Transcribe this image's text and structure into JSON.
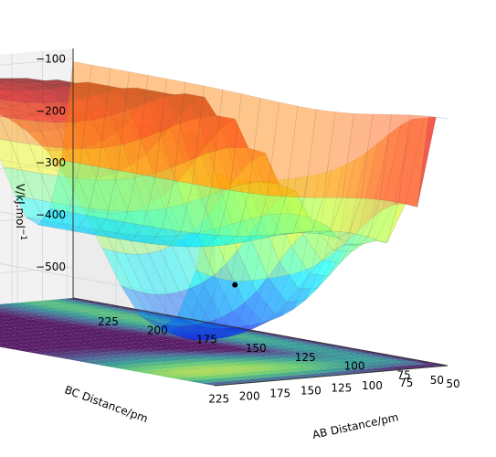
{
  "chart_data": {
    "type": "surface3d",
    "description_note": "",
    "x_axis": {
      "label": "AB Distance/pm",
      "ticks": [
        225,
        200,
        175,
        150,
        125,
        100,
        75,
        50
      ]
    },
    "y_axis": {
      "label": "BC Distance/pm",
      "ticks": [
        50,
        75,
        100,
        125,
        150,
        175,
        200,
        225
      ]
    },
    "z_axis": {
      "label_parts": [
        "V/kJ.mol",
        "−1"
      ],
      "ticks": [
        -100,
        -200,
        -300,
        -400,
        -500
      ],
      "range": [
        -560,
        -80
      ]
    },
    "marker": {
      "ab": 105,
      "bc": 135,
      "v": -425,
      "color": "#000000"
    },
    "colormap_surface": "jet",
    "colormap_contour": "viridis",
    "surface_alpha": 0.45
  }
}
